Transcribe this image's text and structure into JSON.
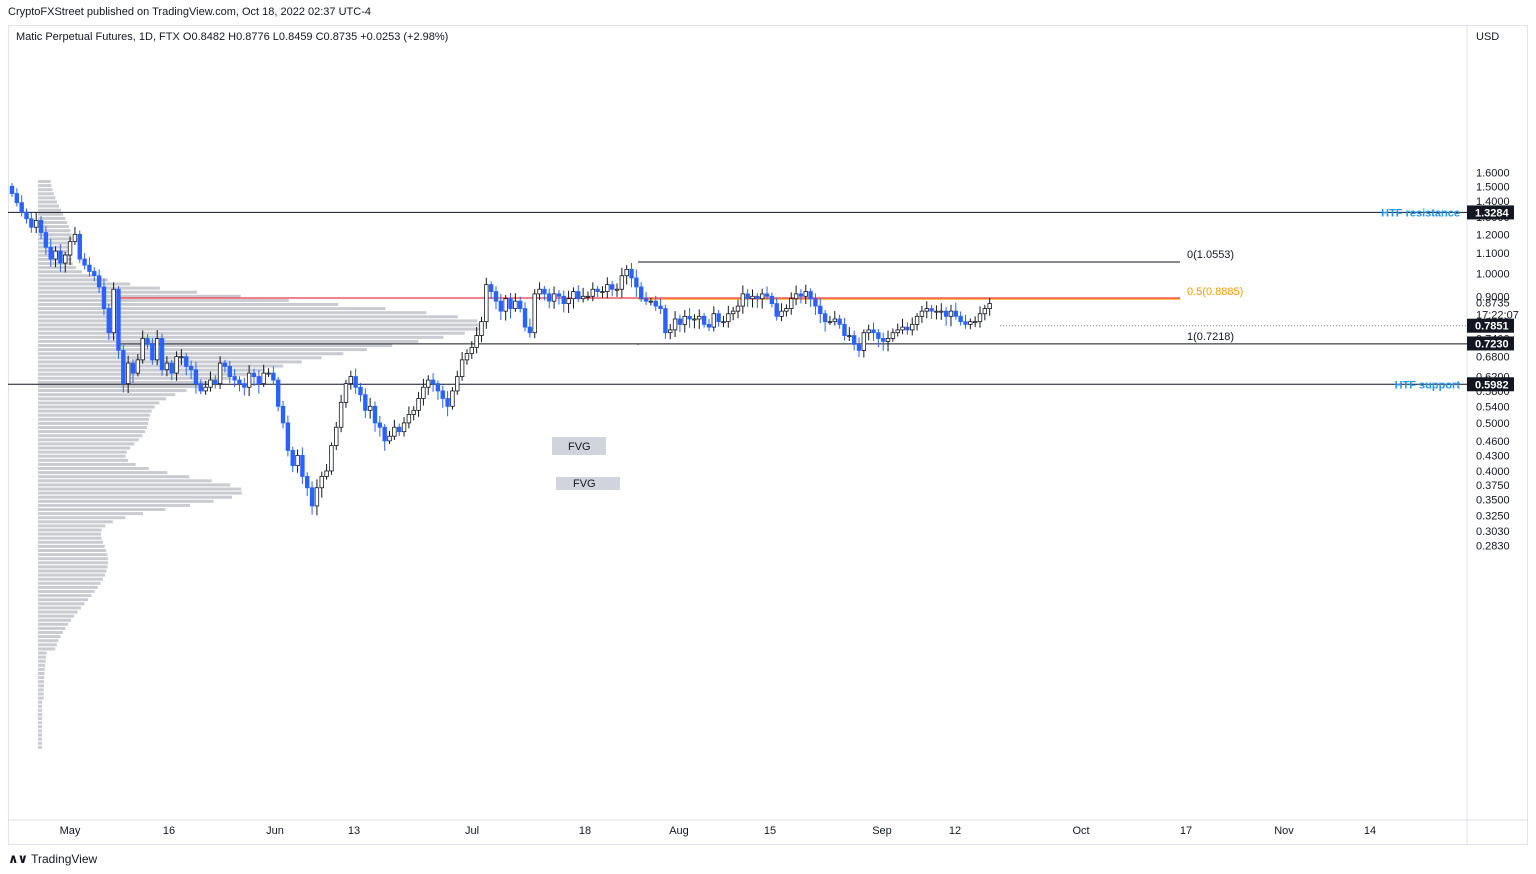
{
  "header": {
    "published": "CryptoFXStreet published on TradingView.com, Oct 18, 2022 02:37 UTC-4"
  },
  "symbol": {
    "line": "Matic Perpetual Futures, 1D, FTX  O0.8482  H0.8776  L0.8459  C0.8735  +0.0253 (+2.98%)"
  },
  "footer": {
    "logo": "∧∨",
    "brand": "TradingView"
  },
  "colors": {
    "up": "#ffffff",
    "down": "#2962ff",
    "wick": "#131722",
    "red_line": "#f23645",
    "orange_line": "#ff9800",
    "label_blue": "#2196f3",
    "volume_profile": "#c9cbd1",
    "fvg_box": "#d1d4dc"
  },
  "chart_data": {
    "type": "candlestick",
    "currency": "USD",
    "y_scale": "log",
    "ylim": [
      0.265,
      1.9
    ],
    "x_axis_ticks": [
      "May",
      "16",
      "Jun",
      "13",
      "Jul",
      "18",
      "Aug",
      "15",
      "Sep",
      "12",
      "Oct",
      "17",
      "Nov",
      "14"
    ],
    "y_axis_ticks": [
      "1.6000",
      "1.5000",
      "1.4000",
      "1.3000",
      "1.2000",
      "1.1000",
      "1.0000",
      "0.9000",
      "0.8000",
      "0.7400",
      "0.6800",
      "0.6200",
      "0.5800",
      "0.5400",
      "0.5000",
      "0.4600",
      "0.4300",
      "0.4000",
      "0.3750",
      "0.3500",
      "0.3250",
      "0.3030",
      "0.2830"
    ],
    "last_price": {
      "value": "0.8735",
      "countdown": "17:22:07"
    },
    "price_tags": [
      {
        "value": "1.3284",
        "label": "HTF resistance"
      },
      {
        "value": "0.7851",
        "label": ""
      },
      {
        "value": "0.7230",
        "label": ""
      },
      {
        "value": "0.5982",
        "label": "HTF support"
      }
    ],
    "fib_levels": [
      {
        "label": "0(1.0553)",
        "value": 1.0553
      },
      {
        "label": "0.5(0.8885)",
        "value": 0.8885
      },
      {
        "label": "1(0.7218)",
        "value": 0.7218
      }
    ],
    "fvg_labels": [
      "FVG",
      "FVG"
    ],
    "closes": [
      1.45,
      1.39,
      1.33,
      1.29,
      1.24,
      1.28,
      1.21,
      1.13,
      1.07,
      1.11,
      1.05,
      1.09,
      1.16,
      1.2,
      1.07,
      1.04,
      1.01,
      0.99,
      0.94,
      0.85,
      0.76,
      0.93,
      0.7,
      0.6,
      0.66,
      0.63,
      0.67,
      0.74,
      0.72,
      0.67,
      0.74,
      0.64,
      0.66,
      0.63,
      0.68,
      0.68,
      0.65,
      0.64,
      0.6,
      0.58,
      0.59,
      0.61,
      0.6,
      0.66,
      0.65,
      0.62,
      0.61,
      0.6,
      0.59,
      0.63,
      0.62,
      0.6,
      0.63,
      0.63,
      0.61,
      0.54,
      0.5,
      0.44,
      0.41,
      0.43,
      0.39,
      0.37,
      0.34,
      0.37,
      0.39,
      0.4,
      0.45,
      0.49,
      0.55,
      0.6,
      0.62,
      0.59,
      0.57,
      0.53,
      0.54,
      0.5,
      0.49,
      0.46,
      0.47,
      0.49,
      0.48,
      0.5,
      0.52,
      0.53,
      0.56,
      0.59,
      0.61,
      0.6,
      0.58,
      0.56,
      0.54,
      0.58,
      0.62,
      0.67,
      0.69,
      0.71,
      0.75,
      0.8,
      0.95,
      0.92,
      0.88,
      0.84,
      0.89,
      0.85,
      0.88,
      0.85,
      0.78,
      0.76,
      0.91,
      0.93,
      0.91,
      0.88,
      0.91,
      0.9,
      0.87,
      0.89,
      0.92,
      0.89,
      0.9,
      0.9,
      0.93,
      0.92,
      0.92,
      0.95,
      0.93,
      0.93,
      0.99,
      1.02,
      0.98,
      0.94,
      0.89,
      0.88,
      0.88,
      0.86,
      0.85,
      0.76,
      0.77,
      0.81,
      0.79,
      0.82,
      0.81,
      0.81,
      0.82,
      0.79,
      0.78,
      0.83,
      0.8,
      0.8,
      0.83,
      0.84,
      0.86,
      0.91,
      0.89,
      0.9,
      0.89,
      0.91,
      0.9,
      0.87,
      0.82,
      0.84,
      0.85,
      0.89,
      0.91,
      0.9,
      0.92,
      0.89,
      0.86,
      0.83,
      0.8,
      0.8,
      0.81,
      0.79,
      0.75,
      0.75,
      0.72,
      0.7,
      0.76,
      0.77,
      0.76,
      0.74,
      0.73,
      0.74,
      0.76,
      0.77,
      0.78,
      0.77,
      0.79,
      0.82,
      0.84,
      0.85,
      0.84,
      0.84,
      0.84,
      0.82,
      0.84,
      0.82,
      0.8,
      0.79,
      0.8,
      0.8,
      0.83,
      0.85,
      0.87
    ]
  }
}
